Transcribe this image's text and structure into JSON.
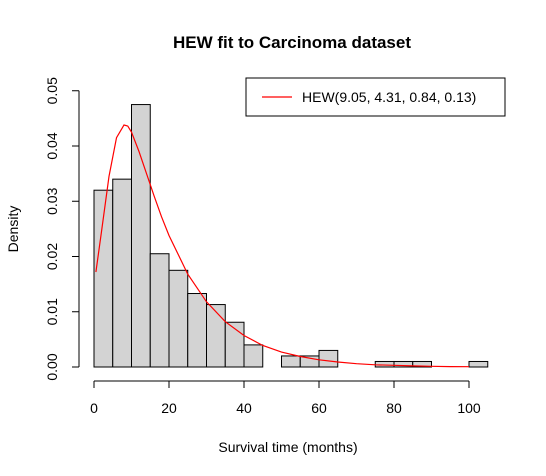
{
  "chart_data": {
    "type": "bar",
    "title": "HEW fit to Carcinoma dataset",
    "xlabel": "Survival time (months)",
    "ylabel": "Density",
    "xlim": [
      0,
      105
    ],
    "ylim": [
      0,
      0.05
    ],
    "x_ticks": [
      0,
      20,
      40,
      60,
      80,
      100
    ],
    "y_ticks": [
      0.0,
      0.01,
      0.02,
      0.03,
      0.04,
      0.05
    ],
    "x_tick_labels": [
      "0",
      "20",
      "40",
      "60",
      "80",
      "100"
    ],
    "y_tick_labels": [
      "0.00",
      "0.01",
      "0.02",
      "0.03",
      "0.04",
      "0.05"
    ],
    "bin_width": 5,
    "bins": [
      {
        "start": 0,
        "end": 5,
        "density": 0.032
      },
      {
        "start": 5,
        "end": 10,
        "density": 0.034
      },
      {
        "start": 10,
        "end": 15,
        "density": 0.0475
      },
      {
        "start": 15,
        "end": 20,
        "density": 0.0205
      },
      {
        "start": 20,
        "end": 25,
        "density": 0.0175
      },
      {
        "start": 25,
        "end": 30,
        "density": 0.0133
      },
      {
        "start": 30,
        "end": 35,
        "density": 0.0113
      },
      {
        "start": 35,
        "end": 40,
        "density": 0.0081
      },
      {
        "start": 40,
        "end": 45,
        "density": 0.004
      },
      {
        "start": 45,
        "end": 50,
        "density": 0.0
      },
      {
        "start": 50,
        "end": 55,
        "density": 0.002
      },
      {
        "start": 55,
        "end": 60,
        "density": 0.002
      },
      {
        "start": 60,
        "end": 65,
        "density": 0.003
      },
      {
        "start": 65,
        "end": 70,
        "density": 0.0
      },
      {
        "start": 70,
        "end": 75,
        "density": 0.0
      },
      {
        "start": 75,
        "end": 80,
        "density": 0.001
      },
      {
        "start": 80,
        "end": 85,
        "density": 0.001
      },
      {
        "start": 85,
        "end": 90,
        "density": 0.001
      },
      {
        "start": 90,
        "end": 95,
        "density": 0.0
      },
      {
        "start": 95,
        "end": 100,
        "density": 0.0
      },
      {
        "start": 100,
        "end": 105,
        "density": 0.001
      }
    ],
    "series": [
      {
        "name": "HEW(9.05, 4.31, 0.84, 0.13)",
        "type": "line",
        "color": "#ff0000",
        "x": [
          0.5,
          2,
          4,
          6,
          8,
          9,
          10,
          12,
          14,
          16,
          18,
          20,
          25,
          30,
          35,
          40,
          45,
          50,
          55,
          60,
          65,
          70,
          75,
          80,
          85,
          90,
          95,
          100
        ],
        "y": [
          0.0172,
          0.0245,
          0.0345,
          0.0415,
          0.0438,
          0.0436,
          0.0425,
          0.039,
          0.035,
          0.031,
          0.0272,
          0.0238,
          0.0168,
          0.0118,
          0.0082,
          0.0057,
          0.0039,
          0.0027,
          0.0019,
          0.0013,
          0.0009,
          0.0006,
          0.0004,
          0.0003,
          0.0002,
          0.00012,
          8e-05,
          5e-05
        ]
      }
    ],
    "legend_position": "top-right",
    "grid": false
  },
  "colors": {
    "bar_fill": "#d3d3d3",
    "bar_stroke": "#000000",
    "curve": "#ff0000"
  }
}
